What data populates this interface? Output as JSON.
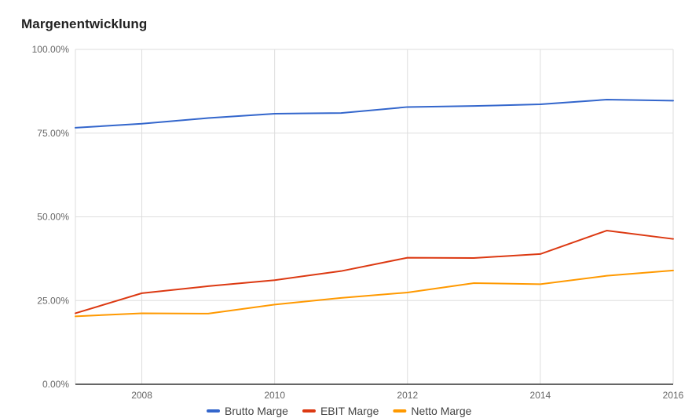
{
  "chart_data": {
    "type": "line",
    "title": "Margenentwicklung",
    "xlabel": "",
    "ylabel": "",
    "x": [
      2007,
      2008,
      2009,
      2010,
      2011,
      2012,
      2013,
      2014,
      2015,
      2016
    ],
    "xlim": [
      2007,
      2016
    ],
    "ylim": [
      0,
      100
    ],
    "y_format": "percent_2dp",
    "x_ticks": [
      "2008",
      "2010",
      "2012",
      "2014",
      "2016"
    ],
    "y_ticks": [
      "0.00%",
      "25.00%",
      "50.00%",
      "75.00%",
      "100.00%"
    ],
    "grid": true,
    "legend_position": "bottom",
    "series": [
      {
        "name": "Brutto Marge",
        "color": "#3366cc",
        "values": [
          76.6,
          77.8,
          79.5,
          80.8,
          81.0,
          82.8,
          83.1,
          83.6,
          85.0,
          84.7
        ]
      },
      {
        "name": "EBIT Marge",
        "color": "#dc3912",
        "values": [
          21.2,
          27.2,
          29.3,
          31.1,
          33.8,
          37.8,
          37.7,
          38.9,
          45.9,
          43.4
        ]
      },
      {
        "name": "Netto Marge",
        "color": "#ff9900",
        "values": [
          20.3,
          21.2,
          21.1,
          23.8,
          25.8,
          27.4,
          30.2,
          29.9,
          32.4,
          34.0
        ]
      }
    ]
  }
}
